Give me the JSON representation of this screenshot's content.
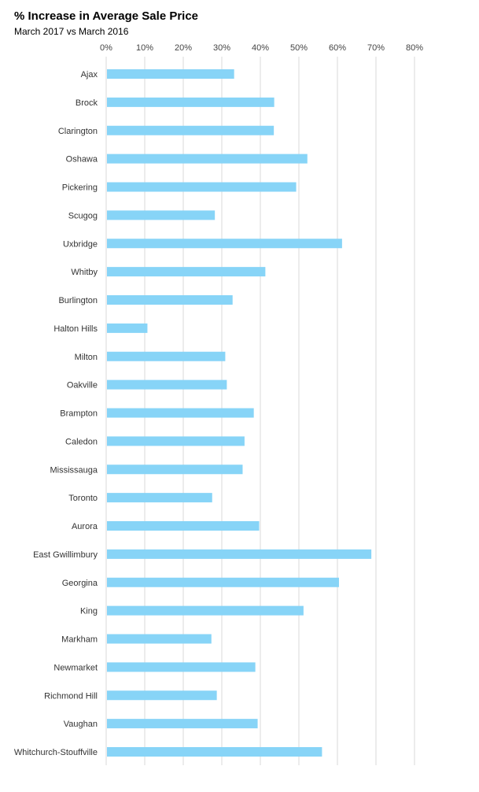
{
  "chart_data": {
    "type": "bar",
    "orientation": "horizontal",
    "title": "% Increase in Average Sale Price",
    "subtitle": "March 2017 vs March 2016",
    "xlim": [
      0,
      80
    ],
    "x_ticks": [
      "0%",
      "10%",
      "20%",
      "30%",
      "40%",
      "50%",
      "60%",
      "70%",
      "80%"
    ],
    "x_axis_position": "top",
    "grid": true,
    "bar_color": "#87D4F7",
    "grid_color": "#D9D9D9",
    "categories": [
      "Ajax",
      "Brock",
      "Clarington",
      "Oshawa",
      "Pickering",
      "Scugog",
      "Uxbridge",
      "Whitby",
      "Burlington",
      "Halton Hills",
      "Milton",
      "Oakville",
      "Brampton",
      "Caledon",
      "Mississauga",
      "Toronto",
      "Aurora",
      "East Gwillimbury",
      "Georgina",
      "King",
      "Markham",
      "Newmarket",
      "Richmond Hill",
      "Vaughan",
      "Whitchurch-Stouffville"
    ],
    "values": [
      33.2,
      43.6,
      43.5,
      52.2,
      49.3,
      28.2,
      61.2,
      41.3,
      32.8,
      10.7,
      30.9,
      31.3,
      38.3,
      35.9,
      35.4,
      27.5,
      39.7,
      68.8,
      60.4,
      51.2,
      27.3,
      38.7,
      28.7,
      39.3,
      56.0
    ]
  }
}
